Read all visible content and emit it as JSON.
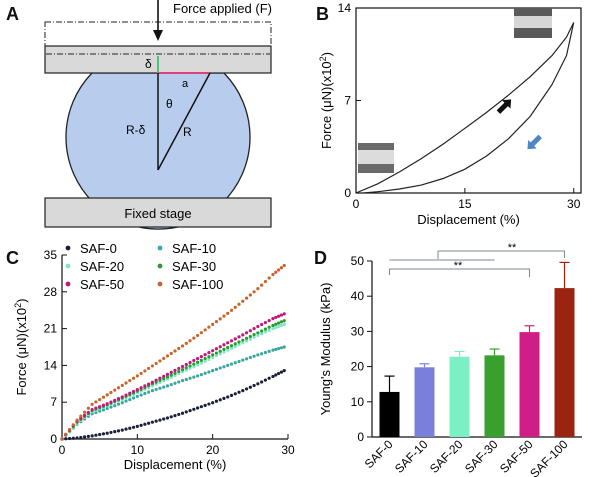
{
  "figure": {
    "panel_labels": [
      "A",
      "B",
      "C",
      "D"
    ]
  },
  "panel_a": {
    "force_label": "Force applied (F)",
    "stage_label": "Fixed stage",
    "symbols": {
      "delta": "δ",
      "a": "a",
      "r_minus_delta": "R-δ",
      "theta": "θ",
      "r": "R"
    },
    "colors": {
      "sphere": "#b8cdee",
      "plate": "#d9d9d9",
      "delta_line": "#4fc27e",
      "a_line": "#e0407a"
    }
  },
  "chart_data": [
    {
      "panel": "B",
      "type": "line",
      "title": "",
      "xlabel": "Displacement (%)",
      "ylabel": "Force (μN)(x10²)",
      "xlim": [
        0,
        31
      ],
      "ylim": [
        0,
        14
      ],
      "xticks": [
        0,
        15,
        30
      ],
      "yticks": [
        0,
        7,
        14
      ],
      "grid": false,
      "series": [
        {
          "x": [
            0,
            3,
            6,
            9,
            12,
            15,
            18,
            21,
            24,
            27,
            29,
            30
          ],
          "y": [
            0,
            0.7,
            1.6,
            2.6,
            3.7,
            4.9,
            6.1,
            7.4,
            8.8,
            10.4,
            11.8,
            12.9
          ]
        },
        {
          "x": [
            30,
            29,
            27,
            24,
            21,
            18,
            15,
            12,
            9,
            6,
            3,
            1
          ],
          "y": [
            12.9,
            10.4,
            8.2,
            5.8,
            4.1,
            2.8,
            1.8,
            1.1,
            0.6,
            0.3,
            0.1,
            0
          ]
        }
      ],
      "arrows": [
        {
          "x": 20.5,
          "y": 6.6,
          "color": "#111111",
          "direction": "up-right"
        },
        {
          "x": 24.5,
          "y": 3.8,
          "color": "#4f86c6",
          "direction": "down-left"
        }
      ]
    },
    {
      "panel": "C",
      "type": "scatter",
      "title": "",
      "xlabel": "Displacement (%)",
      "ylabel": "Force (μN)(x10²)",
      "xlim": [
        0,
        30
      ],
      "ylim": [
        0,
        35
      ],
      "xticks": [
        0,
        10,
        20,
        30
      ],
      "yticks": [
        0,
        7,
        14,
        21,
        28,
        35
      ],
      "grid": false,
      "legend": "top-left, two columns",
      "x": [
        0,
        2,
        4,
        6,
        8,
        10,
        12,
        14,
        16,
        18,
        20,
        22,
        24,
        26,
        28,
        29.5
      ],
      "series": [
        {
          "name": "SAF-0",
          "color": "#1a1f3a",
          "values": [
            0,
            0.2,
            0.6,
            1.1,
            1.7,
            2.4,
            3.2,
            4.0,
            4.9,
            5.9,
            6.9,
            8.0,
            9.2,
            10.5,
            11.9,
            13.0
          ]
        },
        {
          "name": "SAF-10",
          "color": "#3aa6a0",
          "values": [
            0,
            2.8,
            4.8,
            5.8,
            6.9,
            8.1,
            9.2,
            10.1,
            11.1,
            12.0,
            13.0,
            14.0,
            15.0,
            16.0,
            16.9,
            17.5
          ]
        },
        {
          "name": "SAF-20",
          "color": "#7fe7c8",
          "values": [
            0,
            3.0,
            5.2,
            6.3,
            7.5,
            8.8,
            10.1,
            11.4,
            12.8,
            14.1,
            15.5,
            16.9,
            18.3,
            19.7,
            21.0,
            21.8
          ]
        },
        {
          "name": "SAF-30",
          "color": "#2b9a33",
          "values": [
            0,
            3.2,
            5.4,
            6.5,
            7.8,
            9.1,
            10.5,
            11.8,
            13.2,
            14.6,
            16.0,
            17.4,
            18.8,
            20.2,
            21.6,
            22.5
          ]
        },
        {
          "name": "SAF-50",
          "color": "#c2187a",
          "values": [
            0,
            3.4,
            5.6,
            6.7,
            8.0,
            9.4,
            10.8,
            12.3,
            13.8,
            15.3,
            16.8,
            18.3,
            19.8,
            21.4,
            22.9,
            23.8
          ]
        },
        {
          "name": "SAF-100",
          "color": "#c8642a",
          "values": [
            0,
            3.6,
            6.6,
            8.4,
            10.2,
            12.0,
            13.9,
            15.8,
            17.7,
            19.7,
            21.8,
            23.9,
            26.2,
            28.6,
            31.3,
            33.0
          ]
        }
      ]
    },
    {
      "panel": "D",
      "type": "bar",
      "title": "",
      "xlabel": "",
      "ylabel": "Young's Modulus (kPa)",
      "ylim": [
        0,
        50
      ],
      "yticks": [
        0,
        10,
        20,
        30,
        40,
        50
      ],
      "grid": false,
      "categories": [
        "SAF-0",
        "SAF-10",
        "SAF-20",
        "SAF-30",
        "SAF-50",
        "SAF-100"
      ],
      "values": [
        12.8,
        19.8,
        22.8,
        23.2,
        29.8,
        42.3
      ],
      "errors": [
        4.5,
        1.0,
        1.5,
        1.8,
        1.8,
        7.3
      ],
      "colors": [
        "#000000",
        "#7b7fdc",
        "#7af0c4",
        "#39a02e",
        "#cf1f86",
        "#9a2410"
      ],
      "significance": [
        {
          "from": "SAF-0",
          "to": "SAF-50",
          "label": "**",
          "color": "#7c8790"
        },
        {
          "from": "SAF-0",
          "to": "SAF-30",
          "label": "",
          "color": "#7c8790"
        },
        {
          "from": "SAF-0",
          "to": "SAF-100",
          "label": "**",
          "color": "#7c8790"
        },
        {
          "from": "SAF-30",
          "to": "SAF-100",
          "label": "",
          "color": "#7c8790"
        }
      ]
    }
  ]
}
